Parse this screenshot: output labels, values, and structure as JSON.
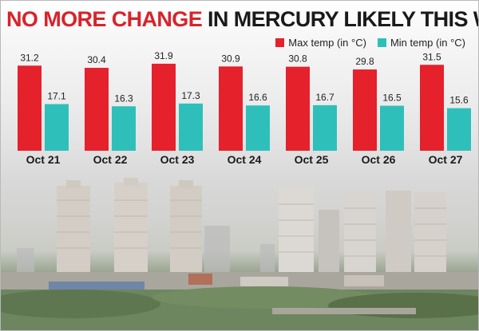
{
  "headline": {
    "highlight": "NO MORE CHANGE",
    "rest": "IN MERCURY LIKELY THIS WK"
  },
  "colors": {
    "max": "#e5212b",
    "min": "#2fbfbb",
    "title_accent": "#d8232a"
  },
  "chart_data": {
    "type": "bar",
    "title": "NO MORE CHANGE IN MERCURY LIKELY THIS WK",
    "categories": [
      "Oct 21",
      "Oct 22",
      "Oct 23",
      "Oct 24",
      "Oct 25",
      "Oct 26",
      "Oct 27"
    ],
    "series": [
      {
        "name": "Max temp (in °C)",
        "values": [
          31.2,
          30.4,
          31.9,
          30.9,
          30.8,
          29.8,
          31.5
        ]
      },
      {
        "name": "Min temp (in °C)",
        "values": [
          17.1,
          16.3,
          17.3,
          16.6,
          16.7,
          16.5,
          15.6
        ]
      }
    ],
    "value_labels": {
      "max": [
        "31.2",
        "30.4",
        "31.9",
        "30.9",
        "30.8",
        "29.8",
        "31.5"
      ],
      "min": [
        "17.1",
        "16.3",
        "17.3",
        "16.6",
        "16.7",
        "16.5",
        "15.6"
      ]
    },
    "ylim": [
      0,
      33
    ],
    "xlabel": "",
    "ylabel": "",
    "grid": false,
    "legend": "top-right"
  }
}
